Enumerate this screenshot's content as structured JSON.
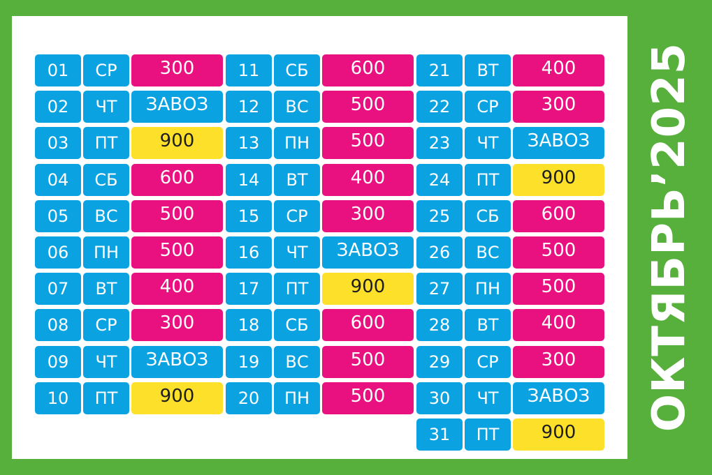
{
  "title": "ОКТЯБРЬ’2025",
  "colors": {
    "background_green": "#56b03b",
    "blue": "#0aa2e1",
    "pink": "#e8117f",
    "yellow": "#fde02a"
  },
  "columns": [
    [
      {
        "day": "01",
        "weekday": "СР",
        "value": "300",
        "color": "pink"
      },
      {
        "day": "02",
        "weekday": "ЧТ",
        "value": "ЗАВОЗ",
        "color": "blue"
      },
      {
        "day": "03",
        "weekday": "ПТ",
        "value": "900",
        "color": "yellow"
      },
      {
        "day": "04",
        "weekday": "СБ",
        "value": "600",
        "color": "pink"
      },
      {
        "day": "05",
        "weekday": "ВС",
        "value": "500",
        "color": "pink"
      },
      {
        "day": "06",
        "weekday": "ПН",
        "value": "500",
        "color": "pink"
      },
      {
        "day": "07",
        "weekday": "ВТ",
        "value": "400",
        "color": "pink"
      },
      {
        "day": "08",
        "weekday": "СР",
        "value": "300",
        "color": "pink"
      },
      {
        "day": "09",
        "weekday": "ЧТ",
        "value": "ЗАВОЗ",
        "color": "blue"
      },
      {
        "day": "10",
        "weekday": "ПТ",
        "value": "900",
        "color": "yellow"
      }
    ],
    [
      {
        "day": "11",
        "weekday": "СБ",
        "value": "600",
        "color": "pink"
      },
      {
        "day": "12",
        "weekday": "ВС",
        "value": "500",
        "color": "pink"
      },
      {
        "day": "13",
        "weekday": "ПН",
        "value": "500",
        "color": "pink"
      },
      {
        "day": "14",
        "weekday": "ВТ",
        "value": "400",
        "color": "pink"
      },
      {
        "day": "15",
        "weekday": "СР",
        "value": "300",
        "color": "pink"
      },
      {
        "day": "16",
        "weekday": "ЧТ",
        "value": "ЗАВОЗ",
        "color": "blue"
      },
      {
        "day": "17",
        "weekday": "ПТ",
        "value": "900",
        "color": "yellow"
      },
      {
        "day": "18",
        "weekday": "СБ",
        "value": "600",
        "color": "pink"
      },
      {
        "day": "19",
        "weekday": "ВС",
        "value": "500",
        "color": "pink"
      },
      {
        "day": "20",
        "weekday": "ПН",
        "value": "500",
        "color": "pink"
      }
    ],
    [
      {
        "day": "21",
        "weekday": "ВТ",
        "value": "400",
        "color": "pink"
      },
      {
        "day": "22",
        "weekday": "СР",
        "value": "300",
        "color": "pink"
      },
      {
        "day": "23",
        "weekday": "ЧТ",
        "value": "ЗАВОЗ",
        "color": "blue"
      },
      {
        "day": "24",
        "weekday": "ПТ",
        "value": "900",
        "color": "yellow"
      },
      {
        "day": "25",
        "weekday": "СБ",
        "value": "600",
        "color": "pink"
      },
      {
        "day": "26",
        "weekday": "ВС",
        "value": "500",
        "color": "pink"
      },
      {
        "day": "27",
        "weekday": "ПН",
        "value": "500",
        "color": "pink"
      },
      {
        "day": "28",
        "weekday": "ВТ",
        "value": "400",
        "color": "pink"
      },
      {
        "day": "29",
        "weekday": "СР",
        "value": "300",
        "color": "pink"
      },
      {
        "day": "30",
        "weekday": "ЧТ",
        "value": "ЗАВОЗ",
        "color": "blue"
      },
      {
        "day": "31",
        "weekday": "ПТ",
        "value": "900",
        "color": "yellow"
      }
    ]
  ]
}
